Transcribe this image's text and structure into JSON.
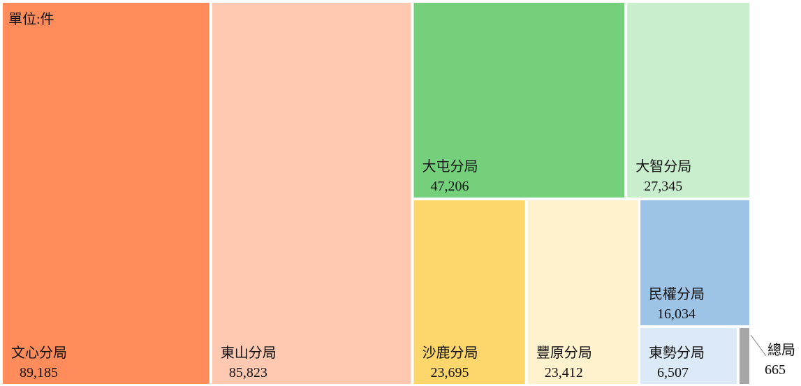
{
  "chart_data": {
    "type": "treemap",
    "subtitle": "單位:件",
    "categories": [
      "文心分局",
      "東山分局",
      "大屯分局",
      "大智分局",
      "沙鹿分局",
      "豐原分局",
      "民權分局",
      "東勢分局",
      "總局"
    ],
    "values": [
      89185,
      85823,
      47206,
      27345,
      23695,
      23412,
      16034,
      6507,
      665
    ],
    "value_labels": [
      "89,185",
      "85,823",
      "47,206",
      "27,345",
      "23,695",
      "23,412",
      "16,034",
      "6,507",
      "665"
    ],
    "colors": [
      "#ff8c5a",
      "#ffc9b1",
      "#74d07a",
      "#c9eecd",
      "#fdd76b",
      "#fff2cc",
      "#9dc3e6",
      "#dce9f6",
      "#a6a6a6"
    ]
  }
}
